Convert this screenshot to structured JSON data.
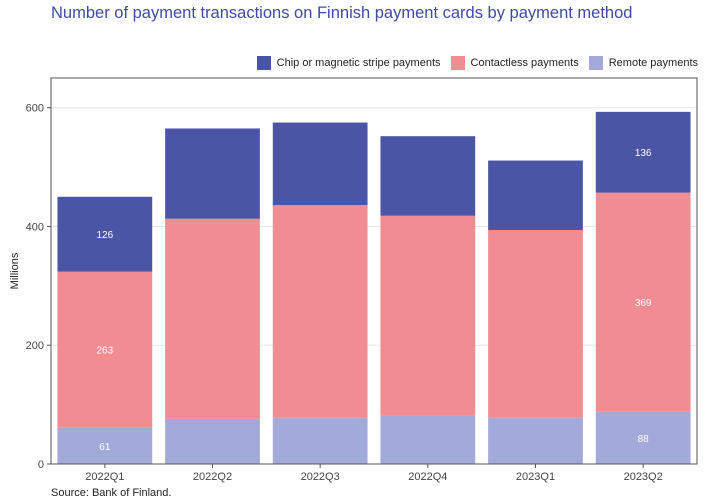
{
  "title": "Number of payment transactions on Finnish payment cards by payment method",
  "source": "Source: Bank of Finland.",
  "colors": {
    "chip": "#4b55a6",
    "contactless": "#f08c92",
    "remote": "#a3a9d8",
    "grid": "#e6e6e6",
    "axis": "#555555"
  },
  "chart_data": {
    "type": "bar",
    "stacked": true,
    "title": "Number of payment transactions on Finnish payment cards by payment method",
    "xlabel": "",
    "ylabel": "Millions",
    "ylim": [
      0,
      650
    ],
    "yticks": [
      0,
      200,
      400,
      600
    ],
    "grid": true,
    "legend_position": "top-right",
    "categories": [
      "2022Q1",
      "2022Q2",
      "2022Q3",
      "2022Q4",
      "2023Q1",
      "2023Q2"
    ],
    "series": [
      {
        "name": "Remote payments",
        "key": "remote",
        "values": [
          61,
          76,
          78,
          81,
          78,
          88
        ]
      },
      {
        "name": "Contactless payments",
        "key": "contactless",
        "values": [
          263,
          337,
          358,
          337,
          316,
          369
        ]
      },
      {
        "name": "Chip or magnetic stripe payments",
        "key": "chip",
        "values": [
          126,
          152,
          139,
          134,
          117,
          136
        ]
      }
    ],
    "data_labels": [
      {
        "category": "2022Q1",
        "series": "remote",
        "text": "61"
      },
      {
        "category": "2022Q1",
        "series": "contactless",
        "text": "263"
      },
      {
        "category": "2022Q1",
        "series": "chip",
        "text": "126"
      },
      {
        "category": "2023Q2",
        "series": "remote",
        "text": "88"
      },
      {
        "category": "2023Q2",
        "series": "contactless",
        "text": "369"
      },
      {
        "category": "2023Q2",
        "series": "chip",
        "text": "136"
      }
    ],
    "legend_order": [
      "chip",
      "contactless",
      "remote"
    ]
  }
}
